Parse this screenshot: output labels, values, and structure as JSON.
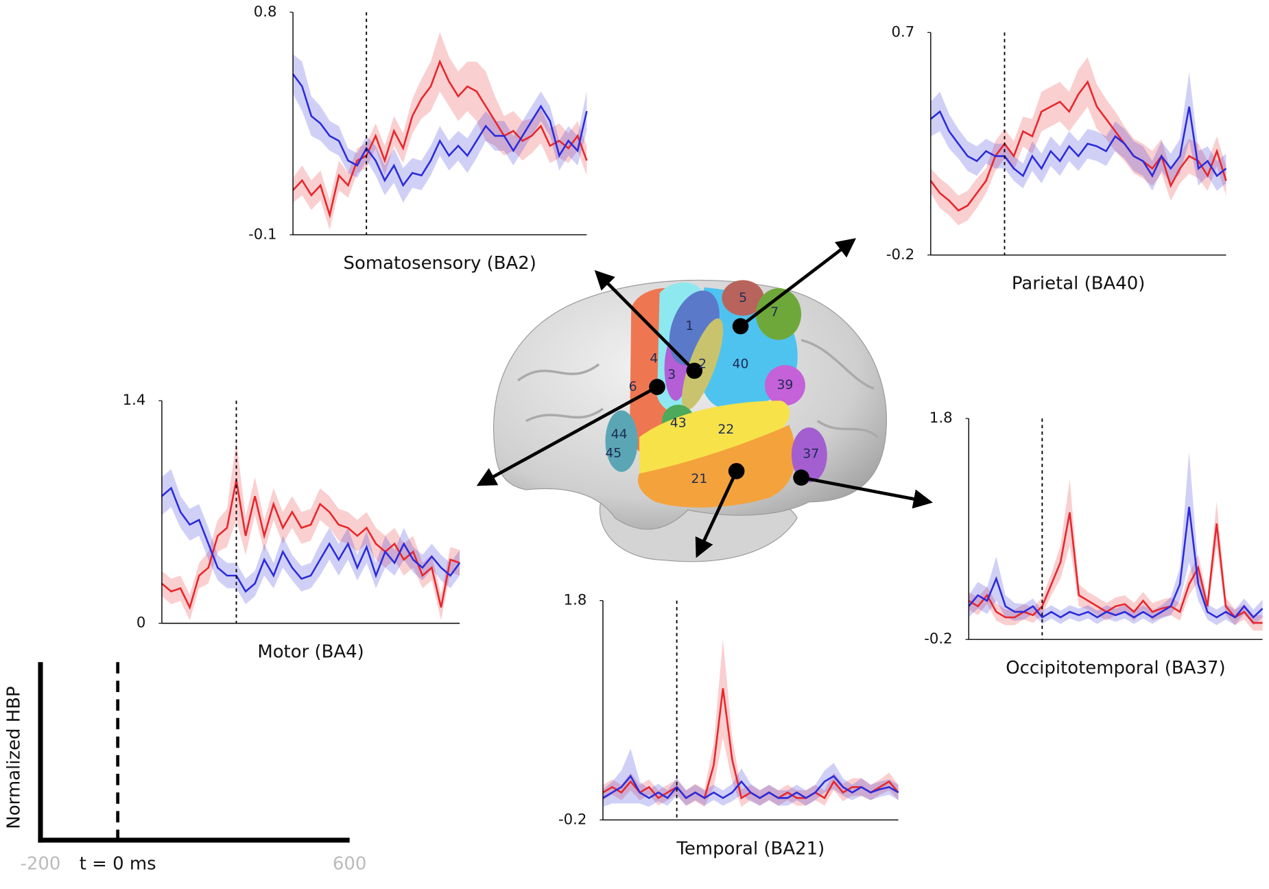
{
  "chart_data": [
    {
      "type": "line",
      "xlabel": "Somatosensory (BA2)",
      "xlim": [
        -200,
        600
      ],
      "ylim": [
        -0.1,
        0.8
      ],
      "yticks": [
        0.8,
        -0.1
      ],
      "vline": 0,
      "x": [
        -200,
        -175,
        -150,
        -125,
        -100,
        -75,
        -50,
        -25,
        0,
        25,
        50,
        75,
        100,
        125,
        150,
        175,
        200,
        225,
        250,
        275,
        300,
        325,
        350,
        375,
        400,
        425,
        450,
        475,
        500,
        525,
        550,
        575,
        600
      ],
      "series": [
        {
          "color": "#e8262b",
          "values": [
            0.08,
            0.12,
            0.06,
            0.1,
            -0.02,
            0.14,
            0.1,
            0.2,
            0.22,
            0.3,
            0.2,
            0.32,
            0.25,
            0.38,
            0.45,
            0.5,
            0.6,
            0.52,
            0.46,
            0.5,
            0.48,
            0.42,
            0.36,
            0.3,
            0.32,
            0.28,
            0.3,
            0.34,
            0.26,
            0.28,
            0.25,
            0.3,
            0.2
          ],
          "error": [
            0.05,
            0.06,
            0.06,
            0.06,
            0.06,
            0.06,
            0.05,
            0.05,
            0.05,
            0.05,
            0.06,
            0.06,
            0.06,
            0.07,
            0.08,
            0.1,
            0.12,
            0.1,
            0.1,
            0.1,
            0.12,
            0.14,
            0.1,
            0.08,
            0.08,
            0.08,
            0.07,
            0.07,
            0.07,
            0.07,
            0.06,
            0.06,
            0.06
          ]
        },
        {
          "color": "#2b2bdb",
          "values": [
            0.55,
            0.5,
            0.38,
            0.35,
            0.3,
            0.28,
            0.2,
            0.18,
            0.25,
            0.2,
            0.12,
            0.18,
            0.1,
            0.15,
            0.14,
            0.2,
            0.28,
            0.22,
            0.26,
            0.22,
            0.28,
            0.34,
            0.3,
            0.3,
            0.24,
            0.3,
            0.36,
            0.42,
            0.36,
            0.22,
            0.28,
            0.24,
            0.4
          ],
          "error": [
            0.08,
            0.1,
            0.08,
            0.07,
            0.06,
            0.06,
            0.05,
            0.05,
            0.05,
            0.06,
            0.06,
            0.07,
            0.07,
            0.06,
            0.06,
            0.06,
            0.06,
            0.06,
            0.06,
            0.07,
            0.07,
            0.06,
            0.06,
            0.06,
            0.06,
            0.06,
            0.06,
            0.06,
            0.06,
            0.06,
            0.06,
            0.06,
            0.08
          ]
        }
      ]
    },
    {
      "type": "line",
      "xlabel": "Parietal (BA40)",
      "xlim": [
        -200,
        600
      ],
      "ylim": [
        -0.2,
        0.7
      ],
      "yticks": [
        0.7,
        -0.2
      ],
      "vline": 0,
      "x": [
        -200,
        -175,
        -150,
        -125,
        -100,
        -75,
        -50,
        -25,
        0,
        25,
        50,
        75,
        100,
        125,
        150,
        175,
        200,
        225,
        250,
        275,
        300,
        325,
        350,
        375,
        400,
        425,
        450,
        475,
        500,
        525,
        550,
        575,
        600
      ],
      "series": [
        {
          "color": "#e8262b",
          "values": [
            0.1,
            0.05,
            0.02,
            -0.02,
            0.0,
            0.05,
            0.1,
            0.2,
            0.25,
            0.2,
            0.3,
            0.28,
            0.38,
            0.4,
            0.42,
            0.38,
            0.45,
            0.5,
            0.4,
            0.35,
            0.3,
            0.25,
            0.2,
            0.18,
            0.15,
            0.2,
            0.08,
            0.15,
            0.2,
            0.18,
            0.12,
            0.22,
            0.1
          ],
          "error": [
            0.05,
            0.06,
            0.06,
            0.06,
            0.06,
            0.06,
            0.05,
            0.06,
            0.06,
            0.06,
            0.06,
            0.07,
            0.08,
            0.08,
            0.08,
            0.08,
            0.1,
            0.1,
            0.09,
            0.08,
            0.08,
            0.07,
            0.07,
            0.07,
            0.07,
            0.07,
            0.06,
            0.06,
            0.07,
            0.07,
            0.06,
            0.06,
            0.06
          ]
        },
        {
          "color": "#2b2bdb",
          "values": [
            0.35,
            0.38,
            0.3,
            0.25,
            0.2,
            0.18,
            0.22,
            0.2,
            0.2,
            0.15,
            0.12,
            0.2,
            0.15,
            0.22,
            0.18,
            0.24,
            0.2,
            0.25,
            0.24,
            0.22,
            0.28,
            0.25,
            0.2,
            0.18,
            0.12,
            0.2,
            0.15,
            0.2,
            0.4,
            0.15,
            0.18,
            0.12,
            0.15
          ],
          "error": [
            0.07,
            0.08,
            0.07,
            0.06,
            0.06,
            0.06,
            0.05,
            0.05,
            0.05,
            0.05,
            0.05,
            0.06,
            0.06,
            0.06,
            0.06,
            0.06,
            0.06,
            0.06,
            0.06,
            0.06,
            0.06,
            0.06,
            0.06,
            0.06,
            0.06,
            0.06,
            0.06,
            0.07,
            0.14,
            0.07,
            0.06,
            0.06,
            0.06
          ]
        }
      ]
    },
    {
      "type": "line",
      "xlabel": "Motor (BA4)",
      "xlim": [
        -200,
        600
      ],
      "ylim": [
        0,
        1.4
      ],
      "yticks": [
        1.4,
        0
      ],
      "vline": 0,
      "x": [
        -200,
        -175,
        -150,
        -125,
        -100,
        -75,
        -50,
        -25,
        0,
        25,
        50,
        75,
        100,
        125,
        150,
        175,
        200,
        225,
        250,
        275,
        300,
        325,
        350,
        375,
        400,
        425,
        450,
        475,
        500,
        525,
        550,
        575,
        600
      ],
      "series": [
        {
          "color": "#e8262b",
          "values": [
            0.25,
            0.2,
            0.22,
            0.1,
            0.3,
            0.35,
            0.55,
            0.6,
            0.9,
            0.55,
            0.8,
            0.55,
            0.75,
            0.6,
            0.7,
            0.6,
            0.62,
            0.75,
            0.7,
            0.62,
            0.6,
            0.55,
            0.6,
            0.5,
            0.45,
            0.5,
            0.4,
            0.45,
            0.3,
            0.35,
            0.1,
            0.4,
            0.38
          ],
          "error": [
            0.08,
            0.08,
            0.08,
            0.08,
            0.08,
            0.1,
            0.1,
            0.12,
            0.25,
            0.12,
            0.12,
            0.1,
            0.1,
            0.1,
            0.1,
            0.1,
            0.1,
            0.1,
            0.1,
            0.1,
            0.1,
            0.1,
            0.1,
            0.1,
            0.1,
            0.1,
            0.1,
            0.1,
            0.08,
            0.08,
            0.08,
            0.08,
            0.08
          ]
        },
        {
          "color": "#2b2bdb",
          "values": [
            0.8,
            0.85,
            0.7,
            0.62,
            0.65,
            0.5,
            0.35,
            0.3,
            0.3,
            0.2,
            0.25,
            0.4,
            0.3,
            0.45,
            0.35,
            0.28,
            0.3,
            0.4,
            0.5,
            0.4,
            0.5,
            0.35,
            0.48,
            0.3,
            0.45,
            0.38,
            0.5,
            0.4,
            0.35,
            0.42,
            0.35,
            0.3,
            0.38
          ],
          "error": [
            0.12,
            0.12,
            0.1,
            0.1,
            0.1,
            0.1,
            0.08,
            0.08,
            0.08,
            0.08,
            0.08,
            0.1,
            0.08,
            0.1,
            0.08,
            0.08,
            0.08,
            0.1,
            0.1,
            0.1,
            0.1,
            0.08,
            0.1,
            0.08,
            0.1,
            0.08,
            0.1,
            0.08,
            0.08,
            0.08,
            0.08,
            0.08,
            0.08
          ]
        }
      ]
    },
    {
      "type": "line",
      "xlabel": "Occipitotemporal (BA37)",
      "xlim": [
        -200,
        600
      ],
      "ylim": [
        -0.2,
        1.8
      ],
      "yticks": [
        1.8,
        -0.2
      ],
      "vline": 0,
      "x": [
        -200,
        -175,
        -150,
        -125,
        -100,
        -75,
        -50,
        -25,
        0,
        25,
        50,
        75,
        100,
        125,
        150,
        175,
        200,
        225,
        250,
        275,
        300,
        325,
        350,
        375,
        400,
        425,
        450,
        475,
        500,
        525,
        550,
        575,
        600
      ],
      "series": [
        {
          "color": "#e8262b",
          "values": [
            0.15,
            0.1,
            0.2,
            0.05,
            0.0,
            0.0,
            0.05,
            0.02,
            0.1,
            0.3,
            0.5,
            0.95,
            0.2,
            0.15,
            0.1,
            0.05,
            0.1,
            0.12,
            0.05,
            0.15,
            0.05,
            0.08,
            0.1,
            0.05,
            0.3,
            0.45,
            0.1,
            0.85,
            0.1,
            0.0,
            0.05,
            -0.05,
            -0.05
          ],
          "error": [
            0.08,
            0.08,
            0.08,
            0.08,
            0.07,
            0.07,
            0.07,
            0.07,
            0.08,
            0.1,
            0.15,
            0.3,
            0.1,
            0.08,
            0.08,
            0.08,
            0.08,
            0.08,
            0.08,
            0.08,
            0.08,
            0.08,
            0.08,
            0.08,
            0.1,
            0.12,
            0.08,
            0.2,
            0.08,
            0.07,
            0.07,
            0.07,
            0.07
          ]
        },
        {
          "color": "#2b2bdb",
          "values": [
            0.1,
            0.2,
            0.15,
            0.35,
            0.1,
            0.05,
            0.05,
            0.1,
            0.0,
            0.05,
            0.0,
            0.05,
            0.02,
            0.05,
            0.0,
            0.05,
            0.02,
            0.05,
            0.0,
            0.05,
            0.0,
            0.05,
            0.1,
            0.3,
            1.0,
            0.3,
            0.05,
            0.0,
            0.05,
            0.0,
            0.1,
            0.0,
            0.08
          ],
          "error": [
            0.1,
            0.12,
            0.12,
            0.2,
            0.1,
            0.08,
            0.07,
            0.07,
            0.06,
            0.06,
            0.06,
            0.06,
            0.06,
            0.06,
            0.06,
            0.06,
            0.06,
            0.06,
            0.06,
            0.06,
            0.06,
            0.06,
            0.08,
            0.15,
            0.5,
            0.15,
            0.07,
            0.07,
            0.07,
            0.07,
            0.07,
            0.07,
            0.08
          ]
        }
      ]
    },
    {
      "type": "line",
      "xlabel": "Temporal (BA21)",
      "xlim": [
        -200,
        600
      ],
      "ylim": [
        -0.2,
        1.8
      ],
      "yticks": [
        1.8,
        -0.2
      ],
      "vline": 0,
      "x": [
        -200,
        -175,
        -150,
        -125,
        -100,
        -75,
        -50,
        -25,
        0,
        25,
        50,
        75,
        100,
        125,
        150,
        175,
        200,
        225,
        250,
        275,
        300,
        325,
        350,
        375,
        400,
        425,
        450,
        475,
        500,
        525,
        550,
        575,
        600
      ],
      "series": [
        {
          "color": "#e8262b",
          "values": [
            0.05,
            0.1,
            0.05,
            0.15,
            0.05,
            0.1,
            0.0,
            0.05,
            0.1,
            0.0,
            0.05,
            0.0,
            0.3,
            1.0,
            0.35,
            0.0,
            0.05,
            0.0,
            0.05,
            0.0,
            0.05,
            0.0,
            0.0,
            0.05,
            0.0,
            0.15,
            0.05,
            0.1,
            0.1,
            0.05,
            0.1,
            0.15,
            0.05
          ],
          "error": [
            0.07,
            0.07,
            0.07,
            0.08,
            0.07,
            0.07,
            0.07,
            0.07,
            0.07,
            0.07,
            0.08,
            0.08,
            0.2,
            0.45,
            0.2,
            0.08,
            0.07,
            0.07,
            0.07,
            0.07,
            0.07,
            0.07,
            0.07,
            0.07,
            0.07,
            0.08,
            0.08,
            0.08,
            0.08,
            0.07,
            0.07,
            0.08,
            0.07
          ]
        },
        {
          "color": "#2b2bdb",
          "values": [
            0.0,
            0.05,
            0.1,
            0.2,
            0.05,
            0.0,
            0.05,
            0.0,
            0.1,
            0.0,
            0.05,
            0.0,
            0.05,
            0.0,
            0.05,
            0.15,
            0.05,
            0.0,
            0.05,
            0.0,
            0.0,
            0.05,
            0.0,
            0.05,
            0.15,
            0.2,
            0.1,
            0.05,
            0.1,
            0.05,
            0.08,
            0.1,
            0.05
          ],
          "error": [
            0.08,
            0.1,
            0.15,
            0.25,
            0.1,
            0.08,
            0.08,
            0.07,
            0.08,
            0.07,
            0.07,
            0.07,
            0.07,
            0.07,
            0.08,
            0.12,
            0.08,
            0.07,
            0.07,
            0.07,
            0.07,
            0.07,
            0.07,
            0.07,
            0.1,
            0.12,
            0.08,
            0.07,
            0.08,
            0.07,
            0.07,
            0.07,
            0.07
          ]
        }
      ]
    }
  ],
  "scale_legend": {
    "ylabel": "Normalized HBP",
    "xlim": [
      -200,
      600
    ],
    "xticks": [
      -200,
      {
        "value": 0,
        "label": "t = 0 ms"
      },
      600
    ]
  },
  "brain": {
    "regions": [
      "1",
      "2",
      "3",
      "4",
      "5",
      "6",
      "7",
      "21",
      "22",
      "37",
      "39",
      "40",
      "43",
      "44",
      "45"
    ]
  }
}
